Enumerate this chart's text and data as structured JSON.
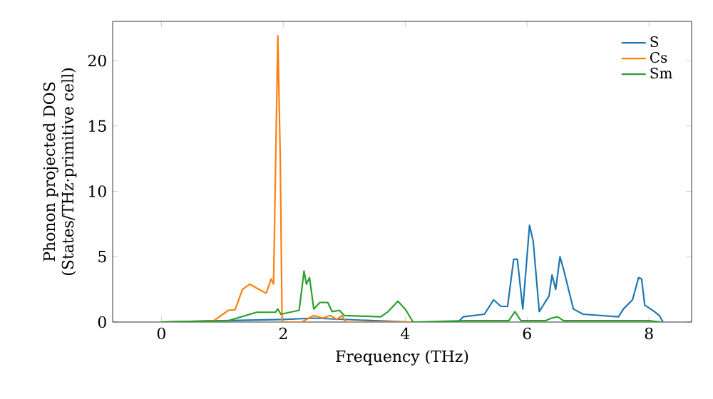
{
  "chart_data": {
    "type": "line",
    "xlabel": "Frequency (THz)",
    "ylabel": "Phonon projected DOS\n(States/THz·primitive cell)",
    "xlim": [
      -0.8,
      8.7
    ],
    "ylim": [
      0,
      23
    ],
    "xticks": [
      0,
      2,
      4,
      6,
      8
    ],
    "yticks": [
      0,
      5,
      10,
      15,
      20
    ],
    "legend": "top right",
    "grid": false,
    "series": [
      {
        "name": "S",
        "color": "#1f77b4",
        "x": [
          0,
          1.0,
          2.0,
          2.5,
          3.0,
          3.5,
          4.1,
          4.87,
          4.95,
          5.3,
          5.45,
          5.57,
          5.68,
          5.78,
          5.84,
          5.93,
          6.04,
          6.1,
          6.2,
          6.36,
          6.41,
          6.47,
          6.54,
          6.6,
          6.76,
          6.92,
          7.5,
          7.58,
          7.73,
          7.83,
          7.88,
          7.93,
          8.09,
          8.17,
          8.23
        ],
        "values": [
          0,
          0.1,
          0.2,
          0.3,
          0.2,
          0.1,
          0,
          0,
          0.4,
          0.6,
          1.7,
          1.2,
          1.2,
          4.8,
          4.8,
          1.0,
          7.4,
          6.2,
          0.8,
          2.0,
          3.6,
          2.5,
          5.0,
          4.0,
          1.0,
          0.6,
          0.4,
          1.0,
          1.7,
          3.4,
          3.3,
          1.3,
          0.8,
          0.5,
          0
        ]
      },
      {
        "name": "Cs",
        "color": "#ff7f0e",
        "x": [
          0,
          0.6,
          0.86,
          1.1,
          1.21,
          1.33,
          1.45,
          1.56,
          1.72,
          1.8,
          1.84,
          1.91,
          1.95,
          1.98,
          2.3,
          2.42,
          2.5,
          2.65,
          2.77,
          2.88,
          2.96,
          3.03,
          4.1
        ],
        "values": [
          0,
          0.05,
          0.1,
          0.9,
          0.95,
          2.5,
          2.9,
          2.6,
          2.2,
          3.3,
          2.9,
          21.9,
          12.6,
          0,
          0,
          0.3,
          0.5,
          0.3,
          0.5,
          0.2,
          0.5,
          0,
          0
        ]
      },
      {
        "name": "Sm",
        "color": "#2ca02c",
        "x": [
          0,
          1.1,
          1.56,
          1.87,
          1.91,
          1.96,
          2.26,
          2.34,
          2.38,
          2.43,
          2.5,
          2.6,
          2.73,
          2.8,
          2.92,
          3.0,
          3.6,
          3.72,
          3.88,
          4.0,
          4.13,
          5.0,
          5.7,
          5.8,
          5.9,
          6.3,
          6.4,
          6.5,
          6.6,
          7.5,
          8.0,
          8.2
        ],
        "values": [
          0,
          0.1,
          0.75,
          0.75,
          1.0,
          0.6,
          0.9,
          3.9,
          2.9,
          3.4,
          1.0,
          1.5,
          1.5,
          0.8,
          0.9,
          0.5,
          0.4,
          0.8,
          1.6,
          1.0,
          0,
          0.1,
          0.1,
          0.8,
          0.1,
          0.1,
          0.3,
          0.4,
          0.1,
          0.1,
          0.1,
          0
        ]
      }
    ]
  }
}
